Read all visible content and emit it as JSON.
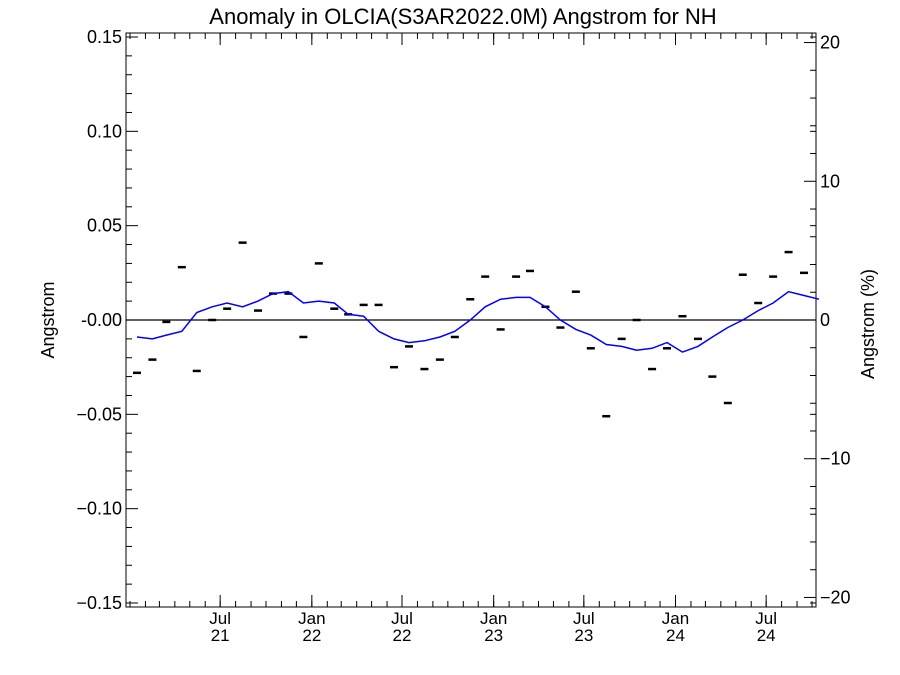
{
  "chart_data": {
    "type": "line",
    "title": "Anomaly in OLCIA(S3AR2022.0M) Angstrom for NH",
    "ylabel_left": "Angstrom",
    "ylabel_right": "Angstrom (%)",
    "xlim": [
      "2021-01-01",
      "2024-10-01"
    ],
    "ylim_left": [
      -0.15,
      0.15
    ],
    "ylim_right": [
      -20.4,
      20.4
    ],
    "y_ticks_left": [
      {
        "value": 0.15,
        "label": "0.15"
      },
      {
        "value": 0.1,
        "label": "0.10"
      },
      {
        "value": 0.05,
        "label": "0.05"
      },
      {
        "value": 0.0,
        "label": "-0.00"
      },
      {
        "value": -0.05,
        "label": "−0.05"
      },
      {
        "value": -0.1,
        "label": "−0.10"
      },
      {
        "value": -0.15,
        "label": "−0.15"
      }
    ],
    "y_ticks_right": [
      {
        "value": 20,
        "label": "20"
      },
      {
        "value": 10,
        "label": "10"
      },
      {
        "value": 0,
        "label": "0"
      },
      {
        "value": -10,
        "label": "−10"
      },
      {
        "value": -20,
        "label": "−20"
      }
    ],
    "x_ticks": [
      {
        "date": "2021-07-01",
        "month": "Jul",
        "year": "21"
      },
      {
        "date": "2022-01-01",
        "month": "Jan",
        "year": "22"
      },
      {
        "date": "2022-07-01",
        "month": "Jul",
        "year": "22"
      },
      {
        "date": "2023-01-01",
        "month": "Jan",
        "year": "23"
      },
      {
        "date": "2023-07-01",
        "month": "Jul",
        "year": "23"
      },
      {
        "date": "2024-01-01",
        "month": "Jan",
        "year": "24"
      },
      {
        "date": "2024-07-01",
        "month": "Jul",
        "year": "24"
      }
    ],
    "zero_line": true,
    "series": [
      {
        "style": "markers",
        "color": "#000000",
        "points": [
          {
            "x": "2021-01",
            "y": -0.028
          },
          {
            "x": "2021-02",
            "y": -0.021
          },
          {
            "x": "2021-03",
            "y": -0.001
          },
          {
            "x": "2021-04",
            "y": 0.028
          },
          {
            "x": "2021-05",
            "y": -0.027
          },
          {
            "x": "2021-06",
            "y": 0.0
          },
          {
            "x": "2021-07",
            "y": 0.006
          },
          {
            "x": "2021-08",
            "y": 0.041
          },
          {
            "x": "2021-09",
            "y": 0.005
          },
          {
            "x": "2021-10",
            "y": 0.014
          },
          {
            "x": "2021-11",
            "y": 0.014
          },
          {
            "x": "2021-12",
            "y": -0.009
          },
          {
            "x": "2022-01",
            "y": 0.03
          },
          {
            "x": "2022-02",
            "y": 0.006
          },
          {
            "x": "2022-03",
            "y": 0.003
          },
          {
            "x": "2022-04",
            "y": 0.008
          },
          {
            "x": "2022-05",
            "y": 0.008
          },
          {
            "x": "2022-06",
            "y": -0.025
          },
          {
            "x": "2022-07",
            "y": -0.014
          },
          {
            "x": "2022-08",
            "y": -0.026
          },
          {
            "x": "2022-09",
            "y": -0.021
          },
          {
            "x": "2022-10",
            "y": -0.009
          },
          {
            "x": "2022-11",
            "y": 0.011
          },
          {
            "x": "2022-12",
            "y": 0.023
          },
          {
            "x": "2023-01",
            "y": -0.005
          },
          {
            "x": "2023-02",
            "y": 0.023
          },
          {
            "x": "2023-03",
            "y": 0.026
          },
          {
            "x": "2023-04",
            "y": 0.007
          },
          {
            "x": "2023-05",
            "y": -0.004
          },
          {
            "x": "2023-06",
            "y": 0.015
          },
          {
            "x": "2023-07",
            "y": -0.015
          },
          {
            "x": "2023-08",
            "y": -0.051
          },
          {
            "x": "2023-09",
            "y": -0.01
          },
          {
            "x": "2023-10",
            "y": 0.0
          },
          {
            "x": "2023-11",
            "y": -0.026
          },
          {
            "x": "2023-12",
            "y": -0.015
          },
          {
            "x": "2024-01",
            "y": 0.002
          },
          {
            "x": "2024-02",
            "y": -0.01
          },
          {
            "x": "2024-03",
            "y": -0.03
          },
          {
            "x": "2024-04",
            "y": -0.044
          },
          {
            "x": "2024-05",
            "y": 0.024
          },
          {
            "x": "2024-06",
            "y": 0.009
          },
          {
            "x": "2024-07",
            "y": 0.023
          },
          {
            "x": "2024-08",
            "y": 0.036
          },
          {
            "x": "2024-09",
            "y": 0.025
          }
        ]
      },
      {
        "style": "line",
        "color": "#0000ff",
        "points": [
          {
            "x": "2021-01",
            "y": -0.009
          },
          {
            "x": "2021-02",
            "y": -0.01
          },
          {
            "x": "2021-03",
            "y": -0.008
          },
          {
            "x": "2021-04",
            "y": -0.006
          },
          {
            "x": "2021-05",
            "y": 0.004
          },
          {
            "x": "2021-06",
            "y": 0.007
          },
          {
            "x": "2021-07",
            "y": 0.009
          },
          {
            "x": "2021-08",
            "y": 0.007
          },
          {
            "x": "2021-09",
            "y": 0.01
          },
          {
            "x": "2021-10",
            "y": 0.014
          },
          {
            "x": "2021-11",
            "y": 0.015
          },
          {
            "x": "2021-12",
            "y": 0.009
          },
          {
            "x": "2022-01",
            "y": 0.01
          },
          {
            "x": "2022-02",
            "y": 0.009
          },
          {
            "x": "2022-03",
            "y": 0.003
          },
          {
            "x": "2022-04",
            "y": 0.002
          },
          {
            "x": "2022-05",
            "y": -0.006
          },
          {
            "x": "2022-06",
            "y": -0.01
          },
          {
            "x": "2022-07",
            "y": -0.012
          },
          {
            "x": "2022-08",
            "y": -0.011
          },
          {
            "x": "2022-09",
            "y": -0.009
          },
          {
            "x": "2022-10",
            "y": -0.006
          },
          {
            "x": "2022-11",
            "y": 0.0
          },
          {
            "x": "2022-12",
            "y": 0.007
          },
          {
            "x": "2023-01",
            "y": 0.011
          },
          {
            "x": "2023-02",
            "y": 0.012
          },
          {
            "x": "2023-03",
            "y": 0.012
          },
          {
            "x": "2023-04",
            "y": 0.007
          },
          {
            "x": "2023-05",
            "y": 0.0
          },
          {
            "x": "2023-06",
            "y": -0.005
          },
          {
            "x": "2023-07",
            "y": -0.008
          },
          {
            "x": "2023-08",
            "y": -0.013
          },
          {
            "x": "2023-09",
            "y": -0.014
          },
          {
            "x": "2023-10",
            "y": -0.016
          },
          {
            "x": "2023-11",
            "y": -0.015
          },
          {
            "x": "2023-12",
            "y": -0.012
          },
          {
            "x": "2024-01",
            "y": -0.017
          },
          {
            "x": "2024-02",
            "y": -0.014
          },
          {
            "x": "2024-03",
            "y": -0.009
          },
          {
            "x": "2024-04",
            "y": -0.004
          },
          {
            "x": "2024-05",
            "y": 0.0
          },
          {
            "x": "2024-06",
            "y": 0.005
          },
          {
            "x": "2024-07",
            "y": 0.009
          },
          {
            "x": "2024-08",
            "y": 0.015
          },
          {
            "x": "2024-09",
            "y": 0.013
          },
          {
            "x": "2024-10",
            "y": 0.011
          }
        ]
      }
    ]
  }
}
